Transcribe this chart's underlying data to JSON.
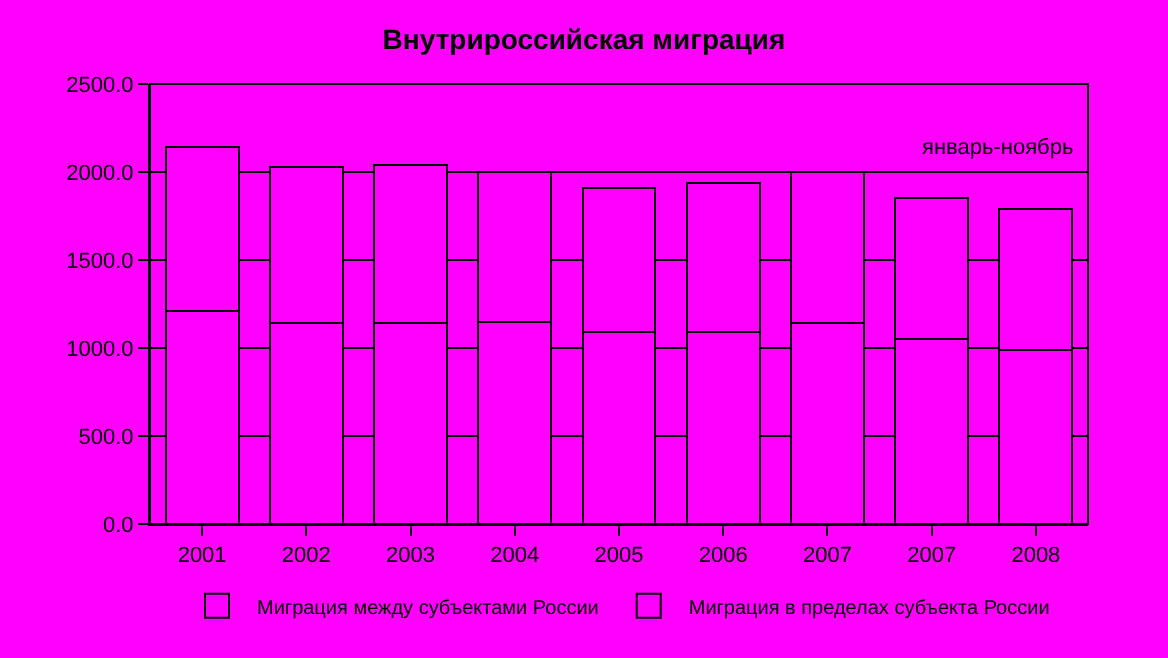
{
  "chart_data": {
    "type": "bar",
    "title": "Внутрироссийская миграция",
    "stacked": true,
    "categories": [
      "2001",
      "2002",
      "2003",
      "2004",
      "2005",
      "2006",
      "2007",
      "2007",
      "2008"
    ],
    "series": [
      {
        "name": "Миграция в пределах субъекта России",
        "color": "#ff00ff",
        "values": [
          1210,
          1140,
          1140,
          1150,
          1090,
          1090,
          1140,
          1050,
          990
        ]
      },
      {
        "name": "Миграция между субъектами России",
        "color": "#ff00ff",
        "values": [
          930,
          890,
          900,
          850,
          820,
          850,
          860,
          800,
          800
        ]
      }
    ],
    "ylim": [
      0,
      2500
    ],
    "yticks": [
      {
        "value": 0,
        "label": "0.0"
      },
      {
        "value": 500,
        "label": "500.0"
      },
      {
        "value": 1000,
        "label": "1000.0"
      },
      {
        "value": 1500,
        "label": "1500.0"
      },
      {
        "value": 2000,
        "label": "2000.0"
      },
      {
        "value": 2500,
        "label": "2500.0"
      }
    ],
    "grid": "y",
    "legend": "bottom",
    "annotations": [
      "январь-ноябрь"
    ]
  }
}
